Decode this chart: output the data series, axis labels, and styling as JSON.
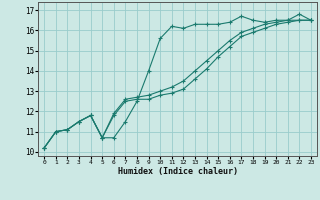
{
  "xlabel": "Humidex (Indice chaleur)",
  "bg_color": "#cce8e4",
  "grid_color": "#99cccc",
  "line_color": "#1a7a6e",
  "xlim": [
    -0.5,
    23.5
  ],
  "ylim": [
    9.8,
    17.4
  ],
  "xticks": [
    0,
    1,
    2,
    3,
    4,
    5,
    6,
    7,
    8,
    9,
    10,
    11,
    12,
    13,
    14,
    15,
    16,
    17,
    18,
    19,
    20,
    21,
    22,
    23
  ],
  "yticks": [
    10,
    11,
    12,
    13,
    14,
    15,
    16,
    17
  ],
  "line1_x": [
    0,
    1,
    2,
    3,
    4,
    5,
    6,
    7,
    8,
    9,
    10,
    11,
    12,
    13,
    14,
    15,
    16,
    17,
    18,
    19,
    20,
    21,
    22,
    23
  ],
  "line1_y": [
    10.2,
    11.0,
    11.1,
    11.5,
    11.8,
    10.7,
    10.7,
    11.5,
    12.5,
    14.0,
    15.6,
    16.2,
    16.1,
    16.3,
    16.3,
    16.3,
    16.4,
    16.7,
    16.5,
    16.4,
    16.5,
    16.5,
    16.8,
    16.5
  ],
  "line2_x": [
    0,
    1,
    2,
    3,
    4,
    5,
    6,
    7,
    8,
    9,
    10,
    11,
    12,
    13,
    14,
    15,
    16,
    17,
    18,
    19,
    20,
    21,
    22,
    23
  ],
  "line2_y": [
    10.2,
    11.0,
    11.1,
    11.5,
    11.8,
    10.7,
    11.8,
    12.5,
    12.6,
    12.6,
    12.8,
    12.9,
    13.1,
    13.6,
    14.1,
    14.7,
    15.2,
    15.7,
    15.9,
    16.1,
    16.3,
    16.4,
    16.5,
    16.5
  ],
  "line3_x": [
    0,
    1,
    2,
    3,
    4,
    5,
    6,
    7,
    8,
    9,
    10,
    11,
    12,
    13,
    14,
    15,
    16,
    17,
    18,
    19,
    20,
    21,
    22,
    23
  ],
  "line3_y": [
    10.2,
    11.0,
    11.1,
    11.5,
    11.8,
    10.7,
    11.9,
    12.6,
    12.7,
    12.8,
    13.0,
    13.2,
    13.5,
    14.0,
    14.5,
    15.0,
    15.5,
    15.9,
    16.1,
    16.3,
    16.4,
    16.5,
    16.5,
    16.5
  ]
}
